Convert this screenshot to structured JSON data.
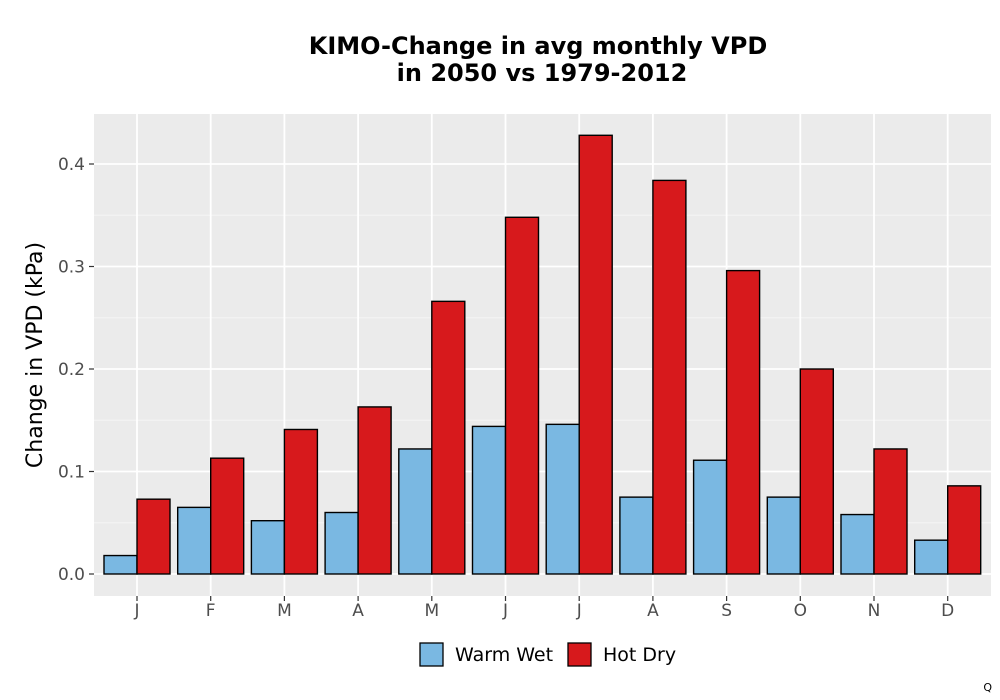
{
  "chart_data": {
    "type": "bar",
    "title_line1": "KIMO-Change in avg monthly VPD",
    "title_line2": "in 2050 vs 1979-2012",
    "xlabel": "",
    "ylabel": "Change in VPD (kPa)",
    "categories": [
      "J",
      "F",
      "M",
      "A",
      "M",
      "J",
      "J",
      "A",
      "S",
      "O",
      "N",
      "D"
    ],
    "series": [
      {
        "name": "Warm Wet",
        "color": "#7ab8e2",
        "values": [
          0.018,
          0.065,
          0.052,
          0.06,
          0.122,
          0.144,
          0.146,
          0.075,
          0.111,
          0.075,
          0.058,
          0.033
        ]
      },
      {
        "name": "Hot Dry",
        "color": "#d7191c",
        "values": [
          0.073,
          0.113,
          0.141,
          0.163,
          0.266,
          0.348,
          0.428,
          0.384,
          0.296,
          0.2,
          0.122,
          0.086
        ]
      }
    ],
    "yticks": [
      "0.0",
      "0.1",
      "0.2",
      "0.3",
      "0.4"
    ],
    "ylim": [
      -0.021,
      0.45
    ],
    "grid": true,
    "legend_position": "bottom",
    "panel_background": "#ebebeb"
  },
  "corner_mark": "Q"
}
